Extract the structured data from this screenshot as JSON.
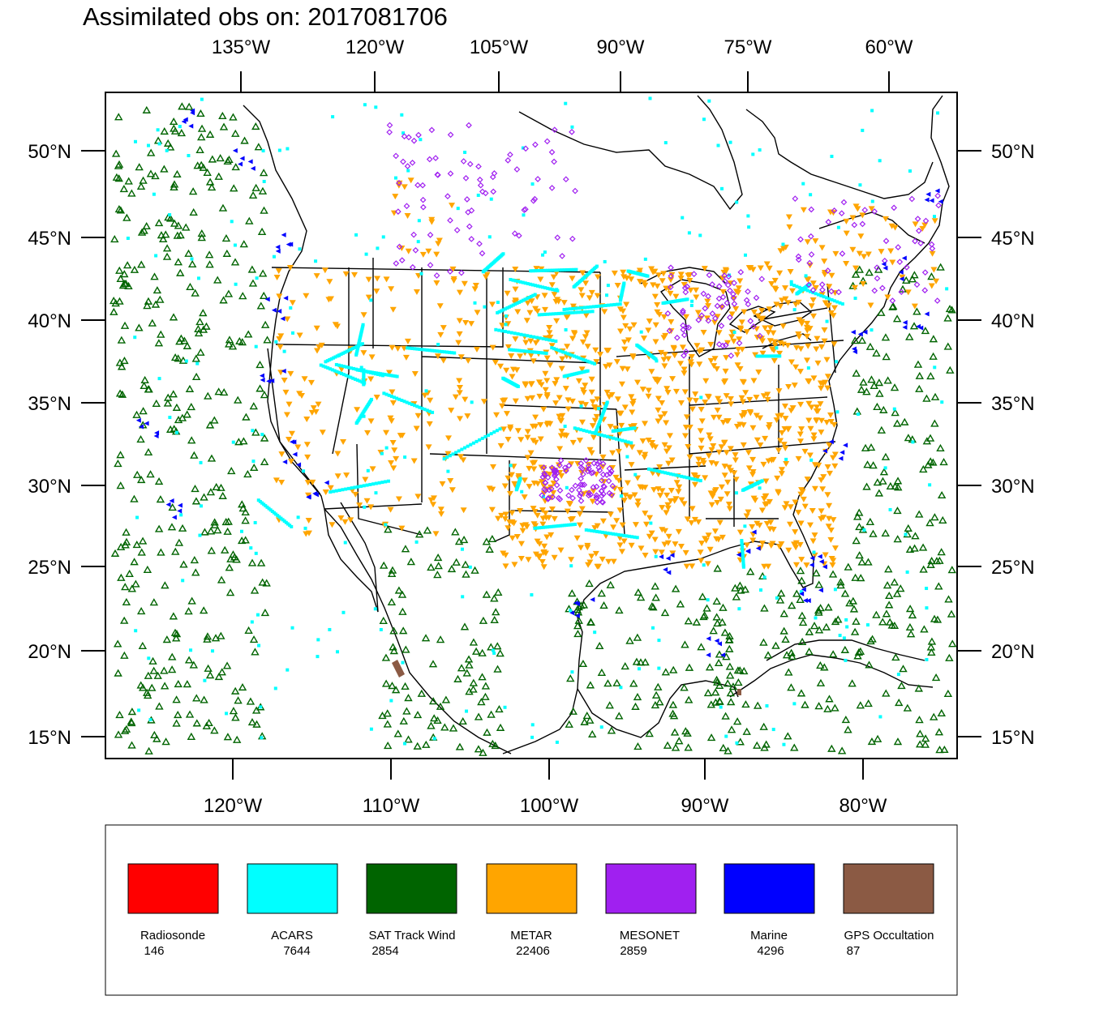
{
  "title": "Assimilated obs on: 2017081706",
  "axes": {
    "top_lon_labels": [
      "135°W",
      "120°W",
      "105°W",
      "90°W",
      "75°W",
      "60°W"
    ],
    "bottom_lon_labels": [
      "120°W",
      "110°W",
      "100°W",
      "90°W",
      "80°W"
    ],
    "left_lat_labels": [
      "50°N",
      "45°N",
      "40°N",
      "35°N",
      "30°N",
      "25°N",
      "20°N",
      "15°N"
    ],
    "right_lat_labels": [
      "50°N",
      "45°N",
      "40°N",
      "35°N",
      "30°N",
      "25°N",
      "20°N",
      "15°N"
    ]
  },
  "legend": [
    {
      "name": "Radiosonde",
      "count": "146",
      "color": "#ff0000"
    },
    {
      "name": "ACARS",
      "count": "7644",
      "color": "#00ffff"
    },
    {
      "name": "SAT Track Wind",
      "count": "2854",
      "color": "#006400"
    },
    {
      "name": "METAR",
      "count": "22406",
      "color": "#ffa500"
    },
    {
      "name": "MESONET",
      "count": "2859",
      "color": "#a020f0"
    },
    {
      "name": "Marine",
      "count": "4296",
      "color": "#0000ff"
    },
    {
      "name": "GPS Occultation",
      "count": "87",
      "color": "#8b5a44"
    }
  ]
}
